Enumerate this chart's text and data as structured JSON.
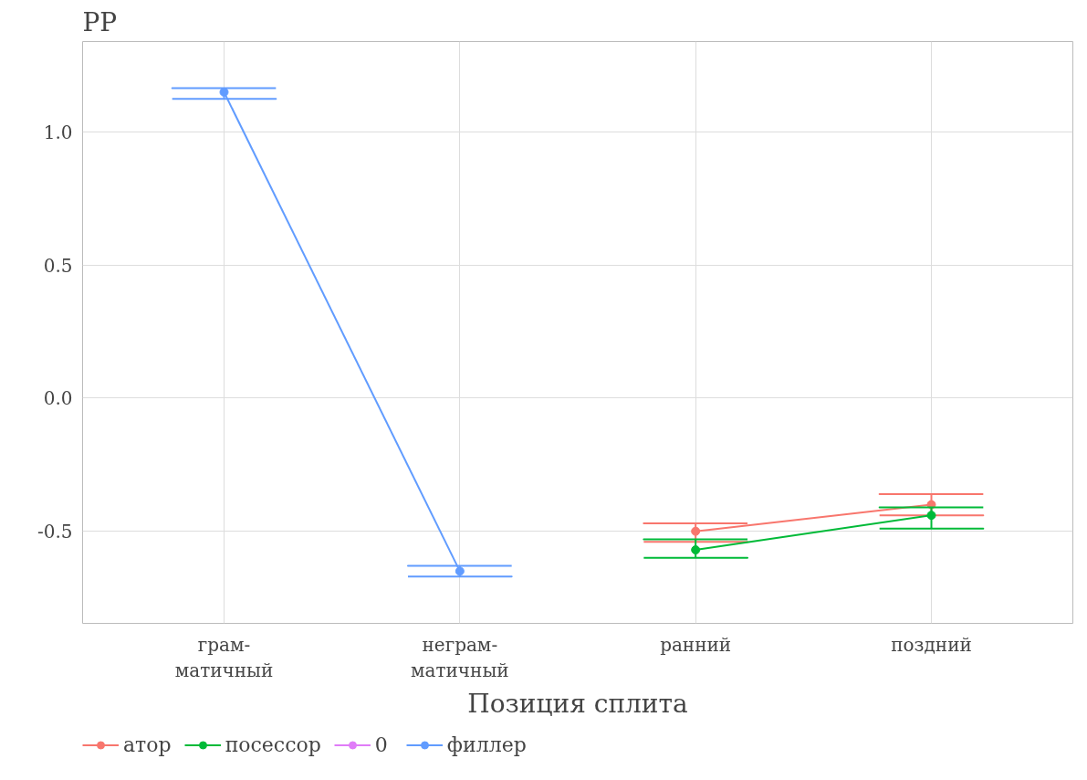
{
  "chart_data": {
    "type": "line",
    "title": "РР",
    "xlabel": "Позиция сплита",
    "categories": [
      "грам-\nматичный",
      "неграм-\nматичный",
      "ранний",
      "поздний"
    ],
    "series": [
      {
        "name": "атор",
        "color": "#f8766d",
        "values": [
          null,
          null,
          -0.5,
          -0.4
        ],
        "errors": [
          null,
          null,
          [
            -0.54,
            -0.47
          ],
          [
            -0.44,
            -0.36
          ]
        ]
      },
      {
        "name": "посессор",
        "color": "#00ba38",
        "values": [
          null,
          null,
          -0.57,
          -0.44
        ],
        "errors": [
          null,
          null,
          [
            -0.6,
            -0.53
          ],
          [
            -0.49,
            -0.41
          ]
        ]
      },
      {
        "name": "0",
        "color": "#e07cf8",
        "values": [
          null,
          null,
          null,
          null
        ]
      },
      {
        "name": "филлер",
        "color": "#619cff",
        "values": [
          1.15,
          -0.65,
          null,
          null
        ],
        "errors": [
          [
            1.125,
            1.165
          ],
          [
            -0.67,
            -0.63
          ],
          null,
          null
        ]
      }
    ],
    "ylim": [
      -0.846,
      1.34
    ],
    "yticks": [
      {
        "value": -0.5,
        "label": "-0.5"
      },
      {
        "value": 0,
        "label": "0.0"
      },
      {
        "value": 0.5,
        "label": "0.5"
      },
      {
        "value": 1,
        "label": "1.0"
      }
    ],
    "grid": true,
    "legend": "bottom",
    "marker": "circle",
    "line_style": "solid"
  }
}
